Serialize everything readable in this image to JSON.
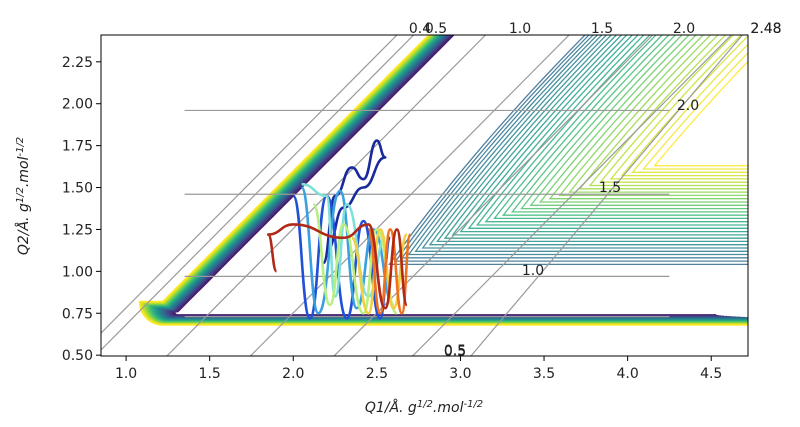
{
  "chart_data": {
    "type": "contour",
    "xlabel": "Q1/Å. g^{1/2}.mol^{-1/2}",
    "ylabel": "Q2/Å. g^{1/2}.mol^{-1/2}",
    "xlim": [
      0.85,
      4.72
    ],
    "ylim": [
      0.495,
      2.41
    ],
    "x_ticks": [
      "1.0",
      "1.5",
      "2.0",
      "2.5",
      "3.0",
      "3.5",
      "4.0",
      "4.5"
    ],
    "y_ticks": [
      "0.50",
      "0.75",
      "1.00",
      "1.25",
      "1.50",
      "1.75",
      "2.00",
      "2.25"
    ],
    "skewed_grid": {
      "top_labels": [
        "0.4",
        "0.5",
        "1.0",
        "1.5",
        "2.0",
        "2.48"
      ],
      "right_labels": [
        "2.48",
        "2.0",
        "1.5",
        "1.0",
        "0.5",
        "0.5"
      ]
    },
    "contour_colormap": "viridis",
    "trajectories": [
      {
        "color": "#1a2a9c",
        "points": [
          [
            2.18,
            1.05
          ],
          [
            2.25,
            1.45
          ],
          [
            2.35,
            1.62
          ],
          [
            2.42,
            1.55
          ],
          [
            2.5,
            1.78
          ],
          [
            2.55,
            1.68
          ],
          [
            2.42,
            1.5
          ],
          [
            2.3,
            1.38
          ],
          [
            2.2,
            1.12
          ]
        ]
      },
      {
        "color": "#2050d8",
        "points": [
          [
            2.0,
            1.45
          ],
          [
            2.1,
            0.72
          ],
          [
            2.2,
            1.45
          ],
          [
            2.32,
            0.72
          ],
          [
            2.42,
            1.3
          ],
          [
            2.52,
            0.72
          ],
          [
            2.58,
            1.2
          ]
        ]
      },
      {
        "color": "#3aa0e0",
        "points": [
          [
            2.05,
            1.5
          ],
          [
            2.15,
            0.75
          ],
          [
            2.28,
            1.48
          ],
          [
            2.38,
            0.78
          ],
          [
            2.48,
            1.25
          ],
          [
            2.6,
            0.8
          ]
        ]
      },
      {
        "color": "#7fe0d8",
        "points": [
          [
            2.05,
            1.52
          ],
          [
            2.2,
            1.45
          ],
          [
            2.25,
            0.85
          ],
          [
            2.32,
            1.4
          ],
          [
            2.45,
            0.85
          ],
          [
            2.55,
            1.2
          ]
        ]
      },
      {
        "color": "#b8f080",
        "points": [
          [
            2.12,
            1.4
          ],
          [
            2.22,
            0.8
          ],
          [
            2.3,
            1.28
          ],
          [
            2.42,
            0.75
          ],
          [
            2.5,
            1.25
          ],
          [
            2.62,
            0.75
          ]
        ]
      },
      {
        "color": "#f0d040",
        "points": [
          [
            2.35,
            1.2
          ],
          [
            2.45,
            0.75
          ],
          [
            2.52,
            1.25
          ],
          [
            2.6,
            0.78
          ],
          [
            2.68,
            1.22
          ]
        ]
      },
      {
        "color": "#f07020",
        "points": [
          [
            2.45,
            1.25
          ],
          [
            2.52,
            0.75
          ],
          [
            2.58,
            1.25
          ],
          [
            2.65,
            0.75
          ],
          [
            2.7,
            1.22
          ]
        ]
      },
      {
        "color": "#b02818",
        "points": [
          [
            1.9,
            1.0
          ],
          [
            1.85,
            1.22
          ],
          [
            2.0,
            1.28
          ],
          [
            2.3,
            1.2
          ],
          [
            2.45,
            1.28
          ],
          [
            2.55,
            0.78
          ],
          [
            2.62,
            1.25
          ],
          [
            2.68,
            0.8
          ]
        ]
      }
    ]
  }
}
